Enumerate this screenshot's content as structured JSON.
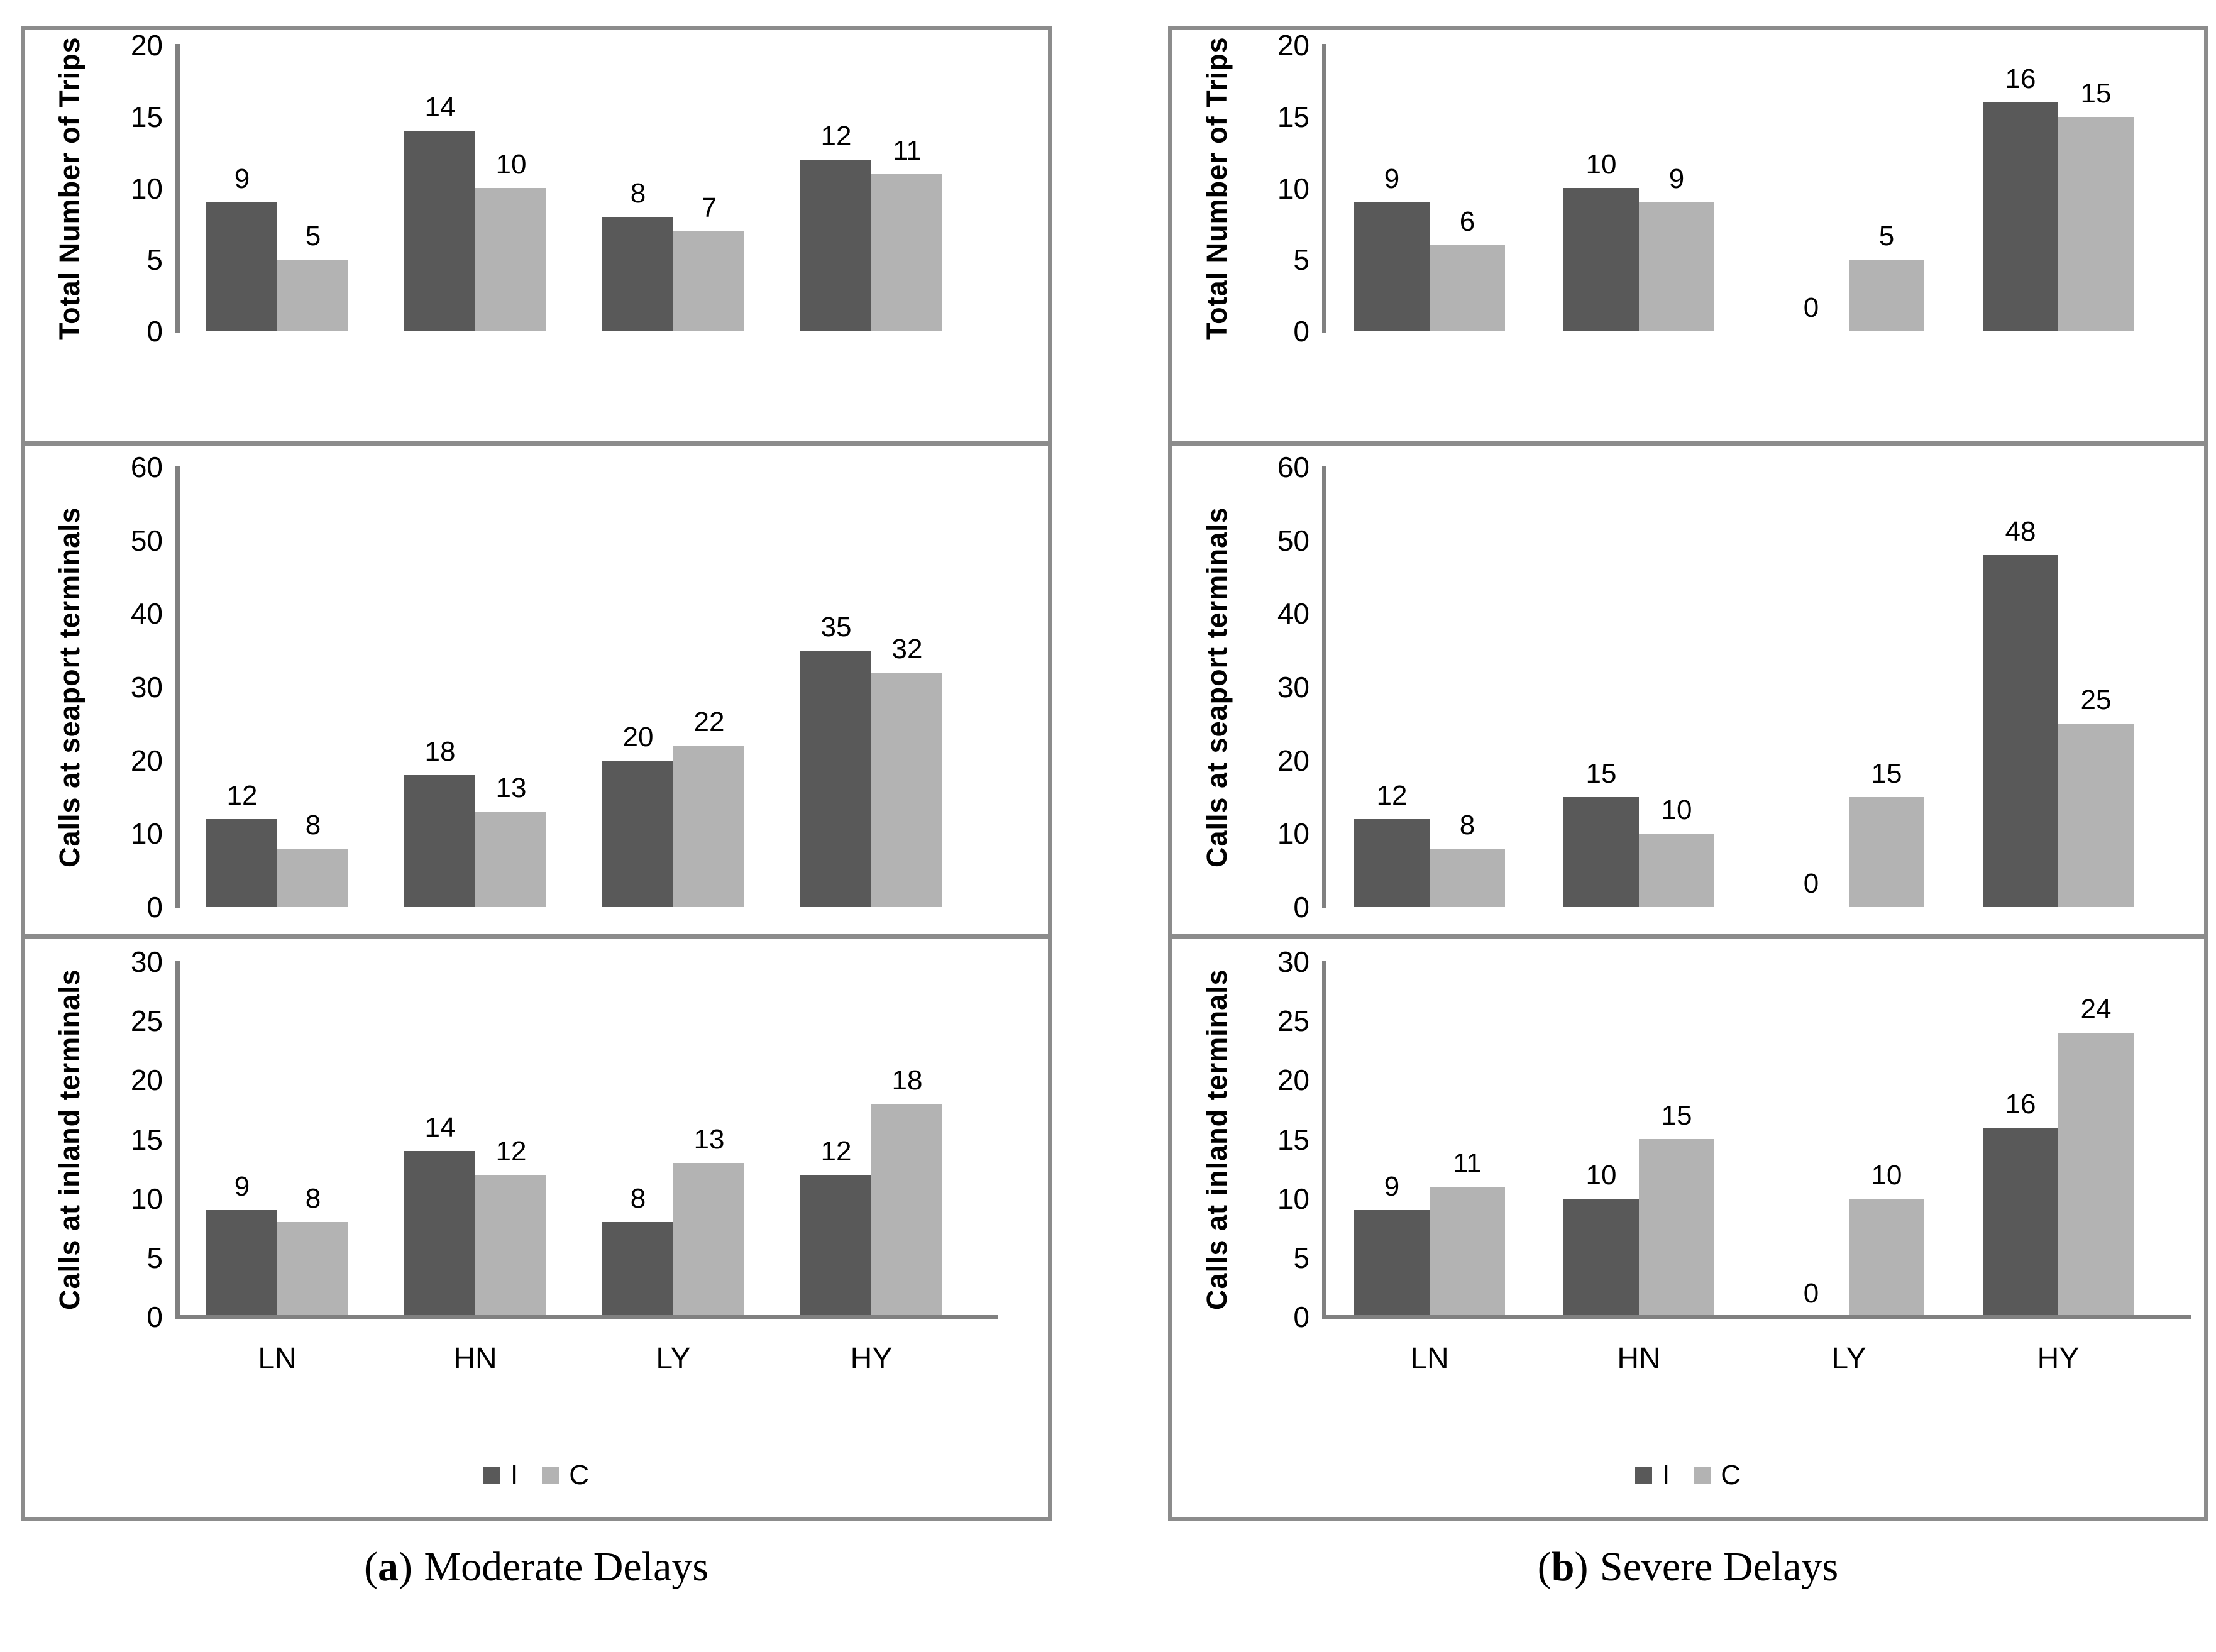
{
  "legend": {
    "items": [
      {
        "name": "I",
        "color": "#595959"
      },
      {
        "name": "C",
        "color": "#b3b3b3"
      }
    ]
  },
  "colors": {
    "series_I": "#595959",
    "series_C": "#b3b3b3",
    "panel_border": "#8c8c8c",
    "axis_line": "#808080",
    "background": "#ffffff",
    "text": "#000000"
  },
  "captions": {
    "a": {
      "open": "(",
      "letter": "a",
      "close": ")",
      "title": "Moderate Delays"
    },
    "b": {
      "open": "(",
      "letter": "b",
      "close": ")",
      "title": "Severe Delays"
    }
  },
  "chart_data": [
    {
      "id": "moderate-total-trips",
      "type": "bar",
      "column": "a",
      "row": 1,
      "ylabel": "Total Number of Trips",
      "categories": [
        "LN",
        "HN",
        "LY",
        "HY"
      ],
      "series": [
        {
          "name": "I",
          "values": [
            9,
            14,
            8,
            12
          ]
        },
        {
          "name": "C",
          "values": [
            5,
            10,
            7,
            11
          ]
        }
      ],
      "ylim": [
        0,
        20
      ],
      "yticks": [
        0,
        5,
        10,
        15,
        20
      ],
      "grid": false,
      "show_x_labels": false,
      "show_legend": false
    },
    {
      "id": "moderate-seaport-calls",
      "type": "bar",
      "column": "a",
      "row": 2,
      "ylabel": "Calls at seaport terminals",
      "categories": [
        "LN",
        "HN",
        "LY",
        "HY"
      ],
      "series": [
        {
          "name": "I",
          "values": [
            12,
            18,
            20,
            35
          ]
        },
        {
          "name": "C",
          "values": [
            8,
            13,
            22,
            32
          ]
        }
      ],
      "ylim": [
        0,
        60
      ],
      "yticks": [
        0,
        10,
        20,
        30,
        40,
        50,
        60
      ],
      "grid": false,
      "show_x_labels": false,
      "show_legend": false
    },
    {
      "id": "moderate-inland-calls",
      "type": "bar",
      "column": "a",
      "row": 3,
      "ylabel": "Calls at inland terminals",
      "categories": [
        "LN",
        "HN",
        "LY",
        "HY"
      ],
      "series": [
        {
          "name": "I",
          "values": [
            9,
            14,
            8,
            12
          ]
        },
        {
          "name": "C",
          "values": [
            8,
            12,
            13,
            18
          ]
        }
      ],
      "ylim": [
        0,
        30
      ],
      "yticks": [
        0,
        5,
        10,
        15,
        20,
        25,
        30
      ],
      "grid": false,
      "show_x_labels": true,
      "show_legend": true,
      "legend_position": "bottom"
    },
    {
      "id": "severe-total-trips",
      "type": "bar",
      "column": "b",
      "row": 1,
      "ylabel": "Total Number of Trips",
      "categories": [
        "LN",
        "HN",
        "LY",
        "HY"
      ],
      "series": [
        {
          "name": "I",
          "values": [
            9,
            10,
            0,
            16
          ]
        },
        {
          "name": "C",
          "values": [
            6,
            9,
            5,
            15
          ]
        }
      ],
      "ylim": [
        0,
        20
      ],
      "yticks": [
        0,
        5,
        10,
        15,
        20
      ],
      "grid": false,
      "show_x_labels": false,
      "show_legend": false
    },
    {
      "id": "severe-seaport-calls",
      "type": "bar",
      "column": "b",
      "row": 2,
      "ylabel": "Calls at seaport terminals",
      "categories": [
        "LN",
        "HN",
        "LY",
        "HY"
      ],
      "series": [
        {
          "name": "I",
          "values": [
            12,
            15,
            0,
            48
          ]
        },
        {
          "name": "C",
          "values": [
            8,
            10,
            15,
            25
          ]
        }
      ],
      "ylim": [
        0,
        60
      ],
      "yticks": [
        0,
        10,
        20,
        30,
        40,
        50,
        60
      ],
      "grid": false,
      "show_x_labels": false,
      "show_legend": false
    },
    {
      "id": "severe-inland-calls",
      "type": "bar",
      "column": "b",
      "row": 3,
      "ylabel": "Calls at inland terminals",
      "categories": [
        "LN",
        "HN",
        "LY",
        "HY"
      ],
      "series": [
        {
          "name": "I",
          "values": [
            9,
            10,
            0,
            16
          ]
        },
        {
          "name": "C",
          "values": [
            11,
            15,
            10,
            24
          ]
        }
      ],
      "ylim": [
        0,
        30
      ],
      "yticks": [
        0,
        5,
        10,
        15,
        20,
        25,
        30
      ],
      "grid": false,
      "show_x_labels": true,
      "show_legend": true,
      "legend_position": "bottom"
    }
  ]
}
